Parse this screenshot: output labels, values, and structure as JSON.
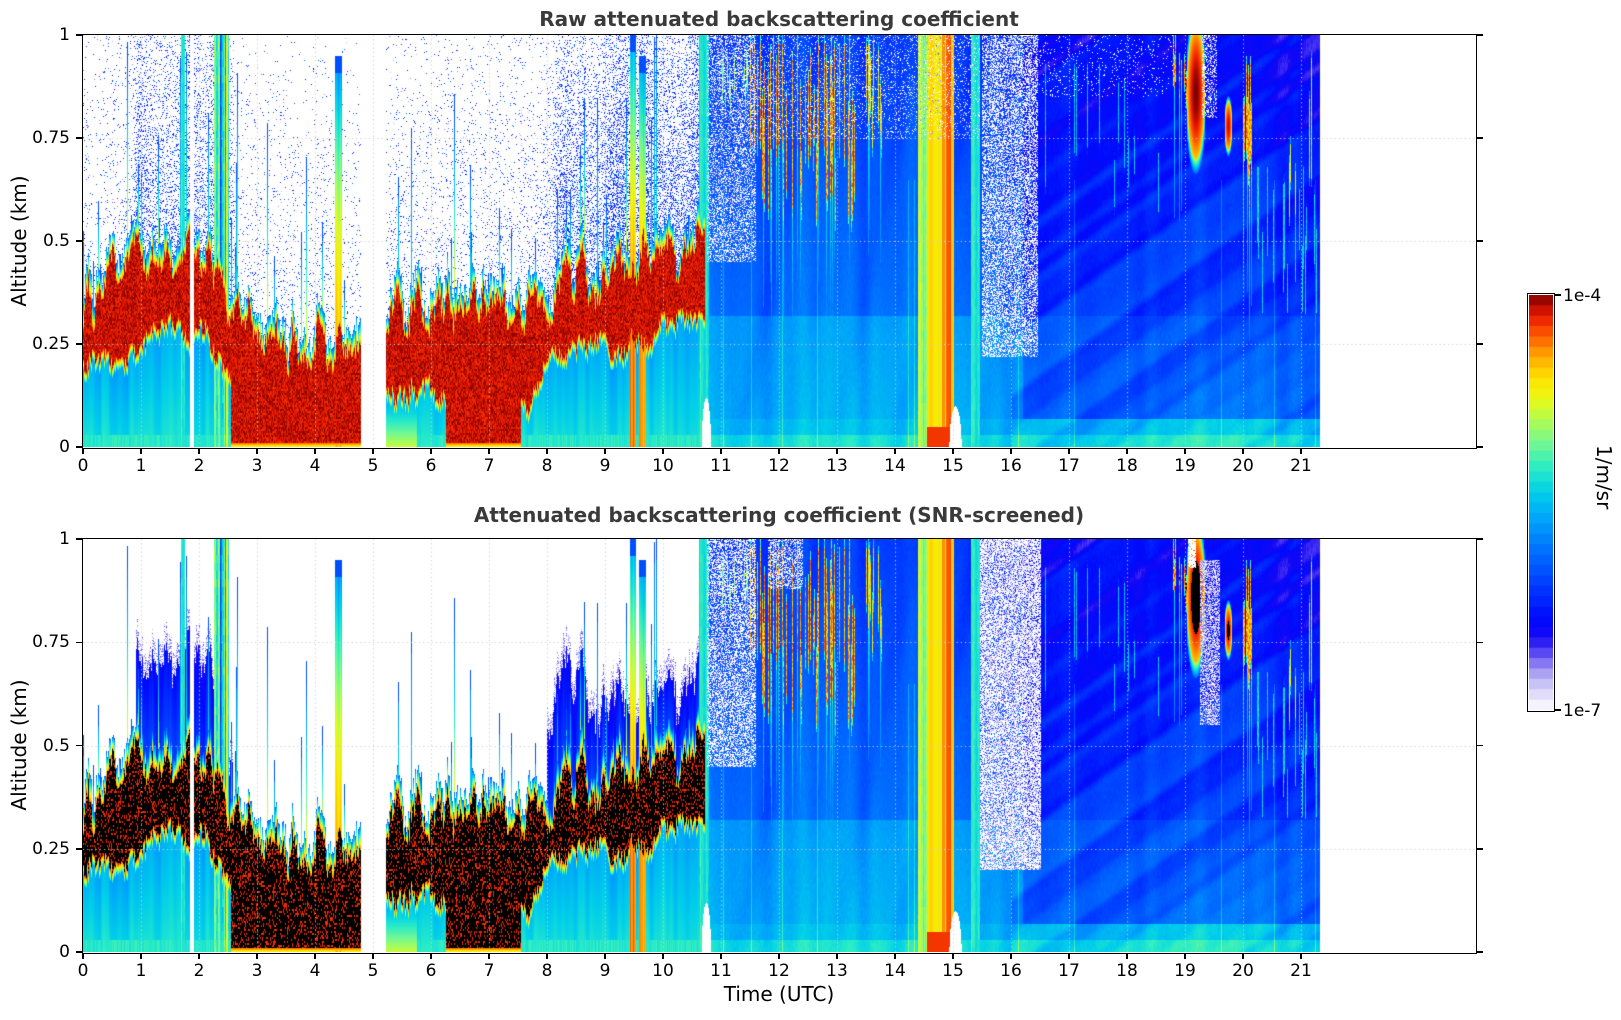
{
  "chart_data": {
    "type": "heatmap",
    "panels": [
      {
        "id": "raw",
        "title": "Raw attenuated backscattering coefficient",
        "mode": "raw"
      },
      {
        "id": "screened",
        "title": "Attenuated backscattering coefficient (SNR-screened)",
        "mode": "screened"
      }
    ],
    "xlabel": "Time (UTC)",
    "ylabel": "Altitude (km)",
    "xlim": [
      0,
      24
    ],
    "ylim": [
      0,
      1
    ],
    "xticks": [
      0,
      1,
      2,
      3,
      4,
      5,
      6,
      7,
      8,
      9,
      10,
      11,
      12,
      13,
      14,
      15,
      16,
      17,
      18,
      19,
      20,
      21
    ],
    "yticks": [
      0,
      0.25,
      0.5,
      0.75,
      1
    ],
    "ytick_labels": [
      "0",
      "0.25",
      "0.5",
      "0.75",
      "1"
    ],
    "grid": {
      "color": "#cdcdcd",
      "style": "dotted"
    },
    "colorbar": {
      "label": "1/m/sr",
      "tick_top": "1e-4",
      "tick_bottom": "1e-7",
      "scale": "log",
      "vmin": 1e-07,
      "vmax": 0.0001,
      "steps": 40
    },
    "colormap_stops": [
      [
        0.0,
        255,
        255,
        255
      ],
      [
        0.03,
        232,
        228,
        250
      ],
      [
        0.06,
        205,
        199,
        246
      ],
      [
        0.09,
        168,
        160,
        242
      ],
      [
        0.12,
        122,
        108,
        243
      ],
      [
        0.15,
        66,
        48,
        243
      ],
      [
        0.18,
        20,
        8,
        245
      ],
      [
        0.22,
        0,
        10,
        252
      ],
      [
        0.3,
        0,
        60,
        255
      ],
      [
        0.38,
        0,
        110,
        255
      ],
      [
        0.46,
        0,
        165,
        250
      ],
      [
        0.52,
        0,
        205,
        235
      ],
      [
        0.58,
        40,
        235,
        200
      ],
      [
        0.64,
        110,
        248,
        150
      ],
      [
        0.7,
        180,
        252,
        80
      ],
      [
        0.75,
        235,
        250,
        20
      ],
      [
        0.8,
        255,
        225,
        0
      ],
      [
        0.85,
        255,
        170,
        0
      ],
      [
        0.9,
        255,
        95,
        0
      ],
      [
        0.95,
        235,
        25,
        0
      ],
      [
        1.0,
        127,
        0,
        0
      ]
    ],
    "model": {
      "data_end": 21.32,
      "gaps": [
        [
          1.83,
          1.9
        ],
        [
          4.78,
          5.22
        ]
      ],
      "aerosol_end": 10.72,
      "black_threshold": 0.945,
      "center_keys": [
        [
          0,
          0.3
        ],
        [
          1.0,
          0.32
        ],
        [
          2.0,
          0.33
        ],
        [
          2.6,
          0.25
        ],
        [
          3.5,
          0.18
        ],
        [
          4.7,
          0.17
        ],
        [
          5.2,
          0.22
        ],
        [
          6.0,
          0.25
        ],
        [
          7.0,
          0.26
        ],
        [
          7.6,
          0.21
        ],
        [
          8.2,
          0.27
        ],
        [
          9.0,
          0.33
        ],
        [
          10.0,
          0.38
        ],
        [
          10.7,
          0.42
        ]
      ],
      "ground_red": [
        [
          2.55,
          4.78
        ],
        [
          6.25,
          7.55
        ]
      ],
      "ground_yellow": [
        [
          5.2,
          5.75
        ]
      ],
      "spike_prob": 0.1,
      "speckle_keys": [
        [
          0,
          0.05
        ],
        [
          0.85,
          0.06
        ],
        [
          0.95,
          0.28
        ],
        [
          2.5,
          0.3
        ],
        [
          2.65,
          0.06
        ],
        [
          7.85,
          0.06
        ],
        [
          8.15,
          0.33
        ],
        [
          10.72,
          0.4
        ]
      ],
      "multi_levels": [
        0.3,
        0.42,
        0.55,
        0.66,
        0.76
      ],
      "base_field": {
        "u0": 0.4,
        "z_slope": -0.12,
        "dark_after": 16.2,
        "dark_delta": -0.07,
        "low_z": 0.32,
        "low_boost_early": 0.065,
        "low_boost_late": 0.03
      },
      "stripes": [
        {
          "kind": "solid",
          "t0": 1.68,
          "t1": 1.75,
          "u": 0.58
        },
        {
          "kind": "multi",
          "t0": 2.25,
          "t1": 2.5
        },
        {
          "kind": "spike",
          "t0": 4.33,
          "t1": 4.46,
          "u": 0.82,
          "ztop": 0.95
        },
        {
          "kind": "spike",
          "t0": 9.42,
          "t1": 9.52,
          "u": 0.88,
          "ztop": 1.0
        },
        {
          "kind": "spike",
          "t0": 9.58,
          "t1": 9.7,
          "u": 0.85,
          "ztop": 0.95
        },
        {
          "kind": "solid",
          "t0": 10.62,
          "t1": 10.79,
          "u": 0.56
        },
        {
          "kind": "solid",
          "t0": 14.38,
          "t1": 14.55,
          "u": 0.68
        },
        {
          "kind": "band",
          "t0": 14.55,
          "t1": 15.0,
          "u": 0.8,
          "red0": 14.78,
          "red1": 14.97
        },
        {
          "kind": "solid",
          "t0": 15.3,
          "t1": 15.45,
          "u": 0.55
        }
      ],
      "clouds": [
        {
          "kind": "streaks",
          "t0": 11.0,
          "t1": 11.5,
          "z0": 0.8,
          "z1": 1.0,
          "density": 0.3,
          "u": 0.72
        },
        {
          "kind": "streaks",
          "t0": 11.5,
          "t1": 13.3,
          "z0": 0.52,
          "z1": 1.0,
          "density": 0.55,
          "u": 0.93
        },
        {
          "kind": "streaks",
          "t0": 13.5,
          "t1": 13.8,
          "z0": 0.7,
          "z1": 1.0,
          "density": 0.5,
          "u": 0.86
        },
        {
          "kind": "streaks",
          "t0": 16.3,
          "t1": 18.7,
          "z0": 0.55,
          "z1": 0.95,
          "density": 0.1,
          "u": 0.55
        },
        {
          "kind": "streaks",
          "t0": 18.78,
          "t1": 19.1,
          "z0": 0.82,
          "z1": 1.0,
          "density": 0.55,
          "u": 0.95
        },
        {
          "kind": "blob",
          "t0": 19.03,
          "t1": 19.33,
          "z0": 0.7,
          "z1": 1.02,
          "u": 1.0
        },
        {
          "kind": "blob",
          "t0": 19.68,
          "t1": 19.8,
          "z0": 0.72,
          "z1": 0.84,
          "u": 0.97
        },
        {
          "kind": "streaks",
          "t0": 20.0,
          "t1": 20.14,
          "z0": 0.52,
          "z1": 0.95,
          "density": 0.75,
          "u": 0.92
        },
        {
          "kind": "streaks",
          "t0": 20.2,
          "t1": 21.3,
          "z0": 0.3,
          "z1": 0.7,
          "density": 0.25,
          "u": 0.58
        },
        {
          "kind": "streaks",
          "t0": 20.78,
          "t1": 20.98,
          "z0": 0.52,
          "z1": 0.8,
          "density": 0.45,
          "u": 0.8
        },
        {
          "kind": "streaks",
          "t0": 21.02,
          "t1": 21.3,
          "z0": 0.6,
          "z1": 1.0,
          "density": 0.35,
          "u": 0.72
        }
      ],
      "white_regions": [
        {
          "t0": 10.75,
          "t1": 11.6,
          "z0": 0.45,
          "z1": 1.0,
          "density": 0.28,
          "panel": "both",
          "lavender": 0.15,
          "seed": 3
        },
        {
          "t0": 15.5,
          "t1": 16.45,
          "z0": 0.22,
          "z1": 1.0,
          "density": 0.4,
          "panel": "raw",
          "lavender": 0.15,
          "seed": 5
        },
        {
          "t0": 15.45,
          "t1": 16.5,
          "z0": 0.2,
          "z1": 1.0,
          "density": 0.55,
          "panel": "screened",
          "lavender": 0.3,
          "seed": 7
        },
        {
          "t0": 19.25,
          "t1": 19.6,
          "z0": 0.55,
          "z1": 0.95,
          "density": 0.25,
          "panel": "screened",
          "lavender": 0.45,
          "seed": 9
        },
        {
          "t0": 19.04,
          "t1": 19.18,
          "z0": 0.93,
          "z1": 1.0,
          "density": 0.85,
          "panel": "screened",
          "lavender": 0,
          "seed": 11
        },
        {
          "t0": 19.28,
          "t1": 19.55,
          "z0": 0.8,
          "z1": 1.0,
          "density": 0.3,
          "panel": "raw",
          "lavender": 0.1,
          "seed": 13
        },
        {
          "t0": 11.8,
          "t1": 12.4,
          "z0": 0.88,
          "z1": 1.0,
          "density": 0.3,
          "panel": "screened",
          "lavender": 0.2,
          "seed": 15
        },
        {
          "t0": 11.6,
          "t1": 15.45,
          "z0": 0.75,
          "z1": 1.0,
          "density": 0.08,
          "panel": "raw",
          "lavender": 0.06,
          "seed": 17
        },
        {
          "t0": 16.45,
          "t1": 18.8,
          "z0": 0.85,
          "z1": 1.0,
          "density": 0.05,
          "panel": "raw",
          "lavender": 0,
          "seed": 19
        }
      ],
      "bottom_notches": [
        [
          10.66,
          10.82,
          0.12
        ],
        [
          14.93,
          15.14,
          0.1
        ]
      ],
      "virga_u": 0.55
    }
  }
}
